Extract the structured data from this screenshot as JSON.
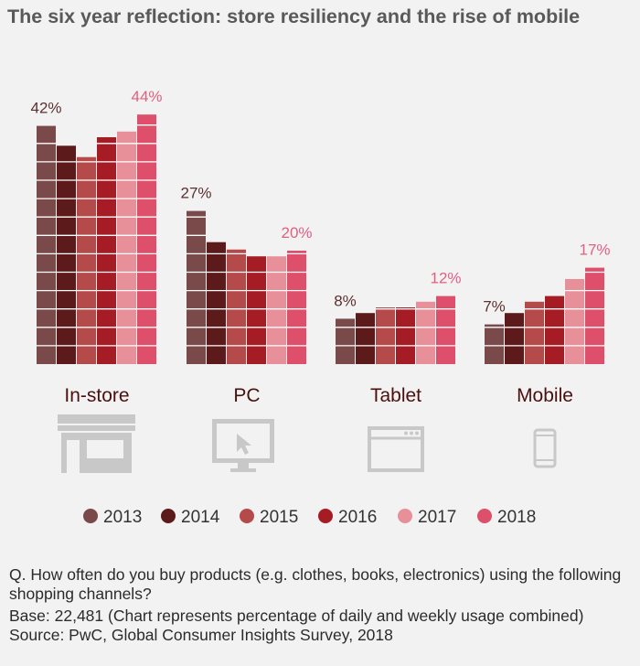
{
  "title": "The six year reflection: store resiliency and the rise of mobile",
  "chart_data": {
    "type": "bar",
    "categories": [
      "In-store",
      "PC",
      "Tablet",
      "Mobile"
    ],
    "series": [
      {
        "name": "2013",
        "color": "#7a4a4a",
        "values": [
          42,
          27,
          8,
          7
        ]
      },
      {
        "name": "2014",
        "color": "#5c1a1a",
        "values": [
          38.5,
          21.5,
          9,
          9
        ]
      },
      {
        "name": "2015",
        "color": "#b54a4a",
        "values": [
          36.5,
          20.2,
          10,
          11
        ]
      },
      {
        "name": "2016",
        "color": "#a51c24",
        "values": [
          40,
          19,
          10,
          12
        ]
      },
      {
        "name": "2017",
        "color": "#e8909a",
        "values": [
          41,
          19,
          11,
          15
        ]
      },
      {
        "name": "2018",
        "color": "#dd4f6b",
        "values": [
          44,
          20,
          12,
          17
        ]
      }
    ],
    "data_labels": [
      {
        "category": "In-store",
        "first": "42%",
        "last": "44%"
      },
      {
        "category": "PC",
        "first": "27%",
        "last": "20%"
      },
      {
        "category": "Tablet",
        "first": "8%",
        "last": "12%"
      },
      {
        "category": "Mobile",
        "first": "7%",
        "last": "17%"
      }
    ],
    "label_colors": {
      "first": "#5a3030",
      "last": "#e06080",
      "category": "#4a1010"
    },
    "ylim": [
      0,
      50
    ],
    "xlabel": "",
    "ylabel": "",
    "legend_position": "bottom",
    "icons": [
      "store-icon",
      "pc-monitor-icon",
      "tablet-browser-icon",
      "mobile-phone-icon"
    ]
  },
  "footer": {
    "question": "Q. How often do you buy products (e.g. clothes, books, electronics) using the following shopping channels?",
    "base": "Base: 22,481 (Chart represents percentage of daily and weekly usage combined)",
    "source": "Source: PwC, Global Consumer Insights Survey, 2018"
  }
}
